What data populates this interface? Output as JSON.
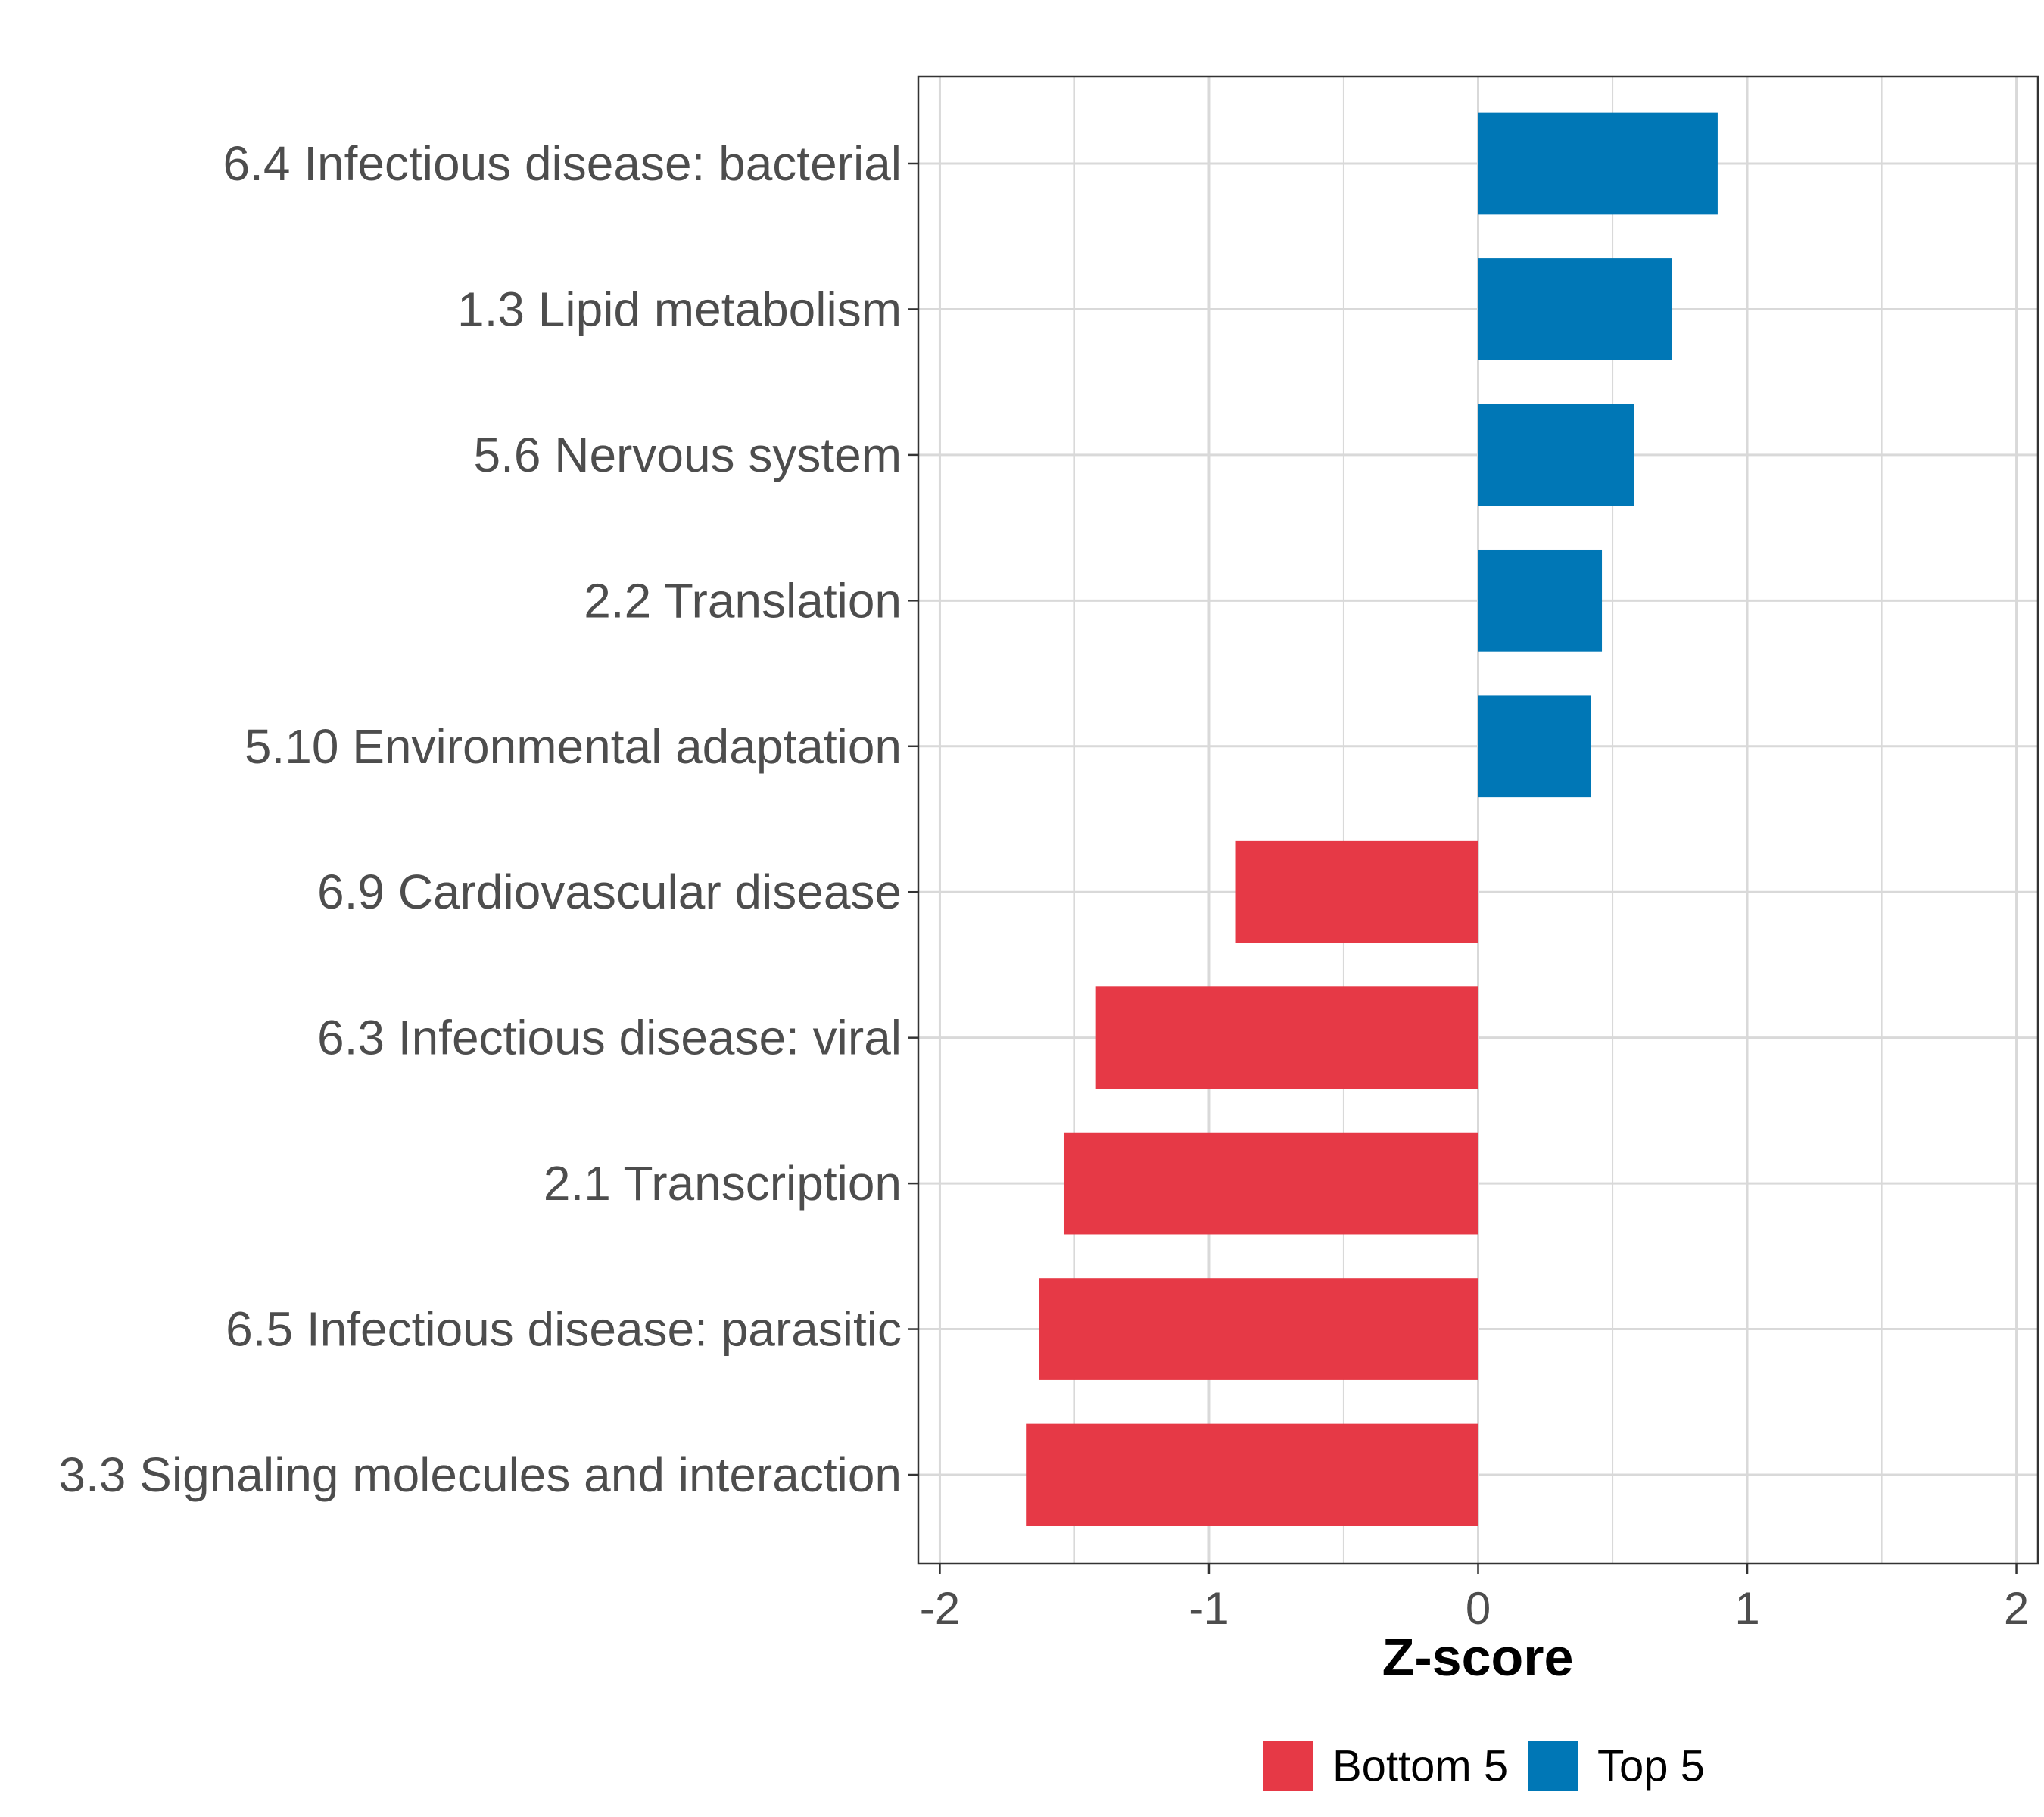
{
  "chart_data": {
    "type": "bar",
    "orientation": "horizontal",
    "title": "",
    "xlabel": "Z-score",
    "ylabel": "",
    "xlim": [
      -2.08,
      2.08
    ],
    "x_ticks": [
      -2,
      -1,
      0,
      1,
      2
    ],
    "x_tick_labels": [
      "-2",
      "-1",
      "0",
      "1",
      "2"
    ],
    "grid": true,
    "legend_position": "bottom",
    "categories": [
      "6.4 Infectious disease: bacterial",
      "1.3 Lipid metabolism",
      "5.6 Nervous system",
      "2.2 Translation",
      "5.10 Environmental adaptation",
      "6.9 Cardiovascular disease",
      "6.3 Infectious disease: viral",
      "2.1 Transcription",
      "6.5 Infectious disease: parasitic",
      "3.3 Signaling molecules and interaction"
    ],
    "values": [
      0.89,
      0.72,
      0.58,
      0.46,
      0.42,
      -0.9,
      -1.42,
      -1.54,
      -1.63,
      -1.68
    ],
    "groups": [
      "Top 5",
      "Top 5",
      "Top 5",
      "Top 5",
      "Top 5",
      "Bottom 5",
      "Bottom 5",
      "Bottom 5",
      "Bottom 5",
      "Bottom 5"
    ],
    "legend": [
      {
        "name": "Bottom 5",
        "color": "#e63946"
      },
      {
        "name": "Top 5",
        "color": "#0077b6"
      }
    ]
  }
}
